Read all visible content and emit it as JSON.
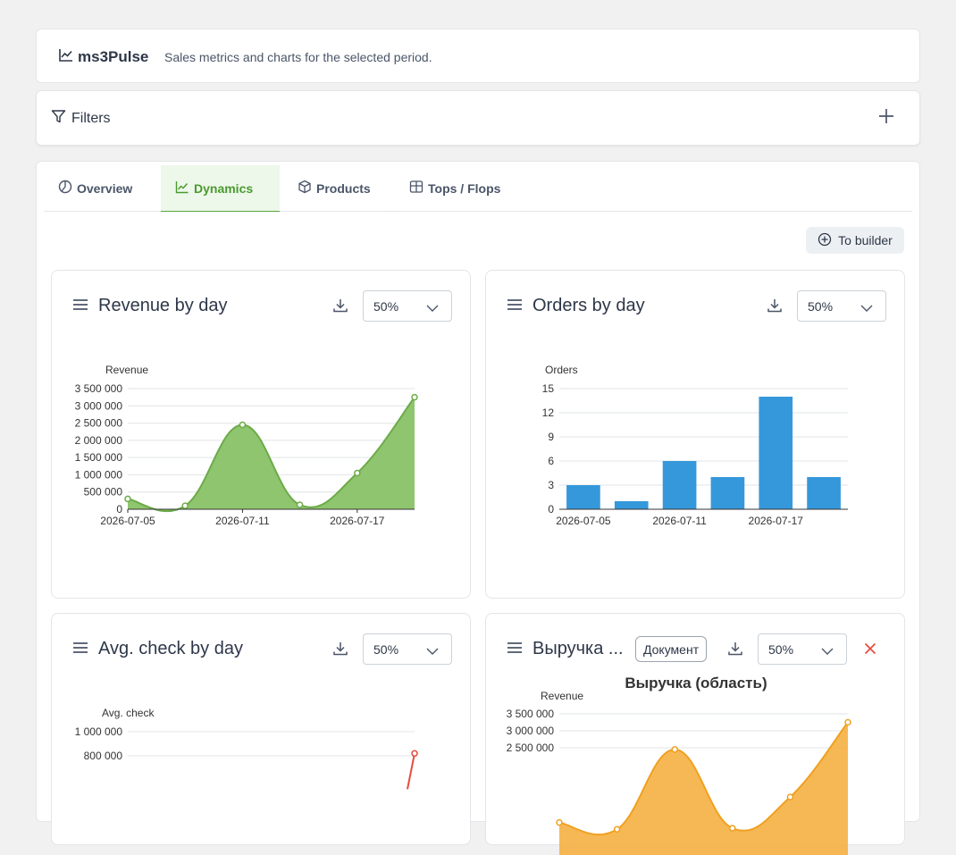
{
  "header": {
    "app_name": "ms3Pulse",
    "subtitle": "Sales metrics and charts for the selected period."
  },
  "filters": {
    "label": "Filters"
  },
  "tabs": [
    {
      "label": "Overview",
      "icon": "pie-icon"
    },
    {
      "label": "Dynamics",
      "icon": "chart-line-icon",
      "active": true
    },
    {
      "label": "Products",
      "icon": "box-icon"
    },
    {
      "label": "Tops / Flops",
      "icon": "table-icon"
    }
  ],
  "to_builder_label": "To builder",
  "colors": {
    "accent": "#59a83c",
    "revenue_fill": "#8fc56e",
    "bar_blue": "#3598db",
    "orange": "#f5b041",
    "red": "#e74c3c"
  },
  "cards": [
    {
      "title": "Revenue by day",
      "width": "50%"
    },
    {
      "title": "Orders by day",
      "width": "50%"
    },
    {
      "title": "Avg. check by day",
      "width": "50%"
    },
    {
      "title": "Выручка ...",
      "badge": "Документ",
      "width": "50%"
    }
  ],
  "chart_data": [
    {
      "type": "area",
      "ylabel": "Revenue",
      "x": [
        "2026-07-05",
        "2026-07-08",
        "2026-07-11",
        "2026-07-14",
        "2026-07-17",
        "2026-07-20"
      ],
      "x_tick_labels": [
        "2026-07-05",
        "2026-07-11",
        "2026-07-17"
      ],
      "values": [
        300000,
        100000,
        2450000,
        130000,
        1050000,
        3250000
      ],
      "y_ticks": [
        "3 500 000",
        "3 000 000",
        "2 500 000",
        "2 000 000",
        "1 500 000",
        "1 000 000",
        "500 000",
        "0"
      ],
      "ylim": [
        0,
        3500000
      ],
      "grid": true
    },
    {
      "type": "bar",
      "ylabel": "Orders",
      "categories": [
        "2026-07-05",
        "2026-07-08",
        "2026-07-11",
        "2026-07-14",
        "2026-07-17",
        "2026-07-20"
      ],
      "x_tick_labels": [
        "2026-07-05",
        "2026-07-11",
        "2026-07-17"
      ],
      "values": [
        3,
        1,
        6,
        4,
        14,
        4
      ],
      "y_ticks": [
        "15",
        "12",
        "9",
        "6",
        "3",
        "0"
      ],
      "ylim": [
        0,
        15
      ],
      "grid": true
    },
    {
      "type": "line",
      "ylabel": "Avg. check",
      "y_ticks": [
        "1 000 000",
        "800 000"
      ],
      "ylim": [
        0,
        1000000
      ],
      "last_value": 820000,
      "grid": true
    },
    {
      "type": "area",
      "title": "Выручка (область)",
      "ylabel": "Revenue",
      "y_ticks": [
        "3 500 000",
        "3 000 000",
        "2 500 000"
      ],
      "ylim": [
        0,
        3500000
      ],
      "values": [
        300000,
        100000,
        2450000,
        130000,
        1050000,
        3250000
      ],
      "grid": true
    }
  ]
}
